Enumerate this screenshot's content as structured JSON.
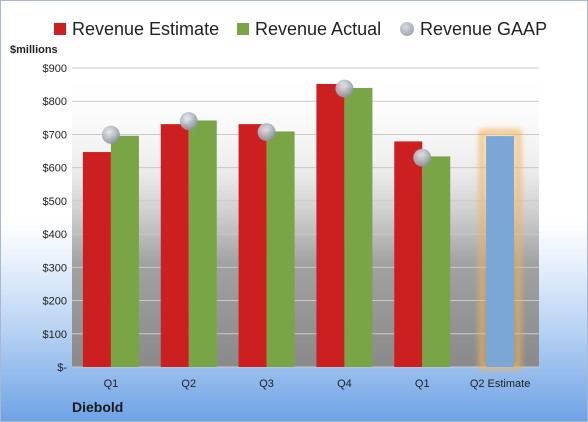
{
  "legend": {
    "estimate": {
      "label": "Revenue Estimate",
      "color": "#cc1f1f"
    },
    "actual": {
      "label": "Revenue Actual",
      "color": "#79a547"
    },
    "gaap": {
      "label": "Revenue GAAP",
      "color": "#a8adb6"
    }
  },
  "unit_label": "$millions",
  "company": "Diebold",
  "chart_data": {
    "type": "bar",
    "categories": [
      "Q1",
      "Q2",
      "Q3",
      "Q4",
      "Q1",
      "Q2 Estimate"
    ],
    "ylim": [
      0,
      900
    ],
    "yticks": [
      {
        "value": 0,
        "label": "$-"
      },
      {
        "value": 100,
        "label": "$100"
      },
      {
        "value": 200,
        "label": "$200"
      },
      {
        "value": 300,
        "label": "$300"
      },
      {
        "value": 400,
        "label": "$400"
      },
      {
        "value": 500,
        "label": "$500"
      },
      {
        "value": 600,
        "label": "$600"
      },
      {
        "value": 700,
        "label": "$700"
      },
      {
        "value": 800,
        "label": "$800"
      },
      {
        "value": 900,
        "label": "$900"
      }
    ],
    "grid": true,
    "legend_position": "top",
    "series": [
      {
        "name": "Revenue Estimate",
        "type": "bar",
        "color": "#cc1f1f",
        "values": [
          647,
          731,
          731,
          852,
          679,
          null
        ]
      },
      {
        "name": "Revenue Actual",
        "type": "bar",
        "color": "#79a547",
        "values": [
          696,
          742,
          709,
          840,
          634,
          null
        ]
      },
      {
        "name": "Revenue GAAP",
        "type": "marker",
        "color": "#a8adb6",
        "values": [
          699,
          740,
          707,
          838,
          630,
          null
        ]
      }
    ],
    "forecast": {
      "category": "Q2 Estimate",
      "value": 695,
      "color": "#7ba7d6",
      "glow": "#f2b25c"
    }
  }
}
